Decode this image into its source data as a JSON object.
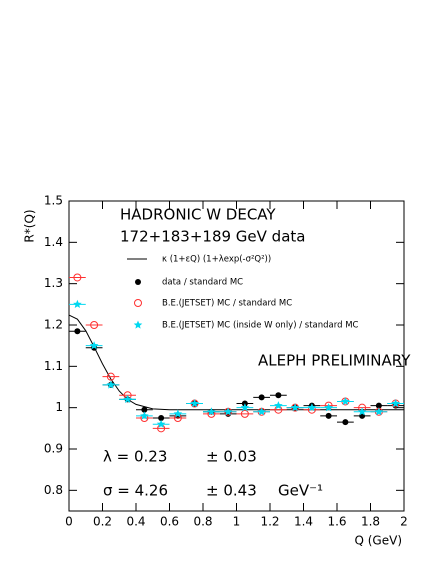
{
  "chart_data": {
    "type": "scatter",
    "title": "HADRONIC W DECAY",
    "subtitle": "172+183+189 GeV data",
    "annotations": [
      "ALEPH PRELIMINARY",
      "λ =  0.23",
      "± 0.03",
      "σ =  4.26",
      "± 0.43",
      "GeV⁻¹"
    ],
    "x_label": "Q (GeV)",
    "y_label": "R*(Q)",
    "xlim": [
      0,
      2
    ],
    "ylim": [
      0.75,
      1.5
    ],
    "xticks": [
      0,
      0.2,
      0.4,
      0.6,
      0.8,
      1,
      1.2,
      1.4,
      1.6,
      1.8,
      2
    ],
    "yticks": [
      0.8,
      0.9,
      1,
      1.1,
      1.2,
      1.3,
      1.4,
      1.5
    ],
    "x": [
      0.05,
      0.15,
      0.25,
      0.35,
      0.45,
      0.55,
      0.65,
      0.75,
      0.85,
      0.95,
      1.05,
      1.15,
      1.25,
      1.35,
      1.45,
      1.55,
      1.65,
      1.75,
      1.85,
      1.95
    ],
    "series": [
      {
        "name": "κ (1+εQ) (1+λexp(-σ²Q²))",
        "color": "#000000",
        "style": "line",
        "x": [
          0,
          0.05,
          0.1,
          0.15,
          0.2,
          0.25,
          0.3,
          0.35,
          0.4,
          0.5,
          0.6,
          0.8,
          1,
          1.5,
          2
        ],
        "values": [
          1.224,
          1.214,
          1.186,
          1.147,
          1.106,
          1.069,
          1.04,
          1.02,
          1.008,
          0.997,
          0.995,
          0.995,
          0.995,
          0.995,
          0.995
        ]
      },
      {
        "name": "data / standard MC",
        "color": "#000000",
        "style": "filled-circle",
        "values": [
          1.185,
          1.145,
          1.055,
          1.02,
          0.995,
          0.975,
          0.98,
          1.01,
          0.99,
          0.985,
          1.01,
          1.025,
          1.03,
          1.0,
          1.005,
          0.98,
          0.965,
          0.98,
          1.005,
          1.005
        ]
      },
      {
        "name": "B.E.(JETSET) MC / standard MC",
        "color": "#ff3030",
        "style": "open-circle",
        "values": [
          1.315,
          1.2,
          1.075,
          1.03,
          0.975,
          0.95,
          0.975,
          1.01,
          0.985,
          0.99,
          0.985,
          0.99,
          0.995,
          1.0,
          0.995,
          1.005,
          1.015,
          1.0,
          0.99,
          1.01
        ]
      },
      {
        "name": "B.E.(JETSET) MC (inside W only) / standard MC",
        "color": "#00d8f0",
        "style": "star",
        "values": [
          1.25,
          1.15,
          1.055,
          1.02,
          0.98,
          0.96,
          0.985,
          1.01,
          0.99,
          0.99,
          1.0,
          0.99,
          1.005,
          1.0,
          1.0,
          1.0,
          1.015,
          0.99,
          0.99,
          1.01
        ]
      }
    ]
  }
}
